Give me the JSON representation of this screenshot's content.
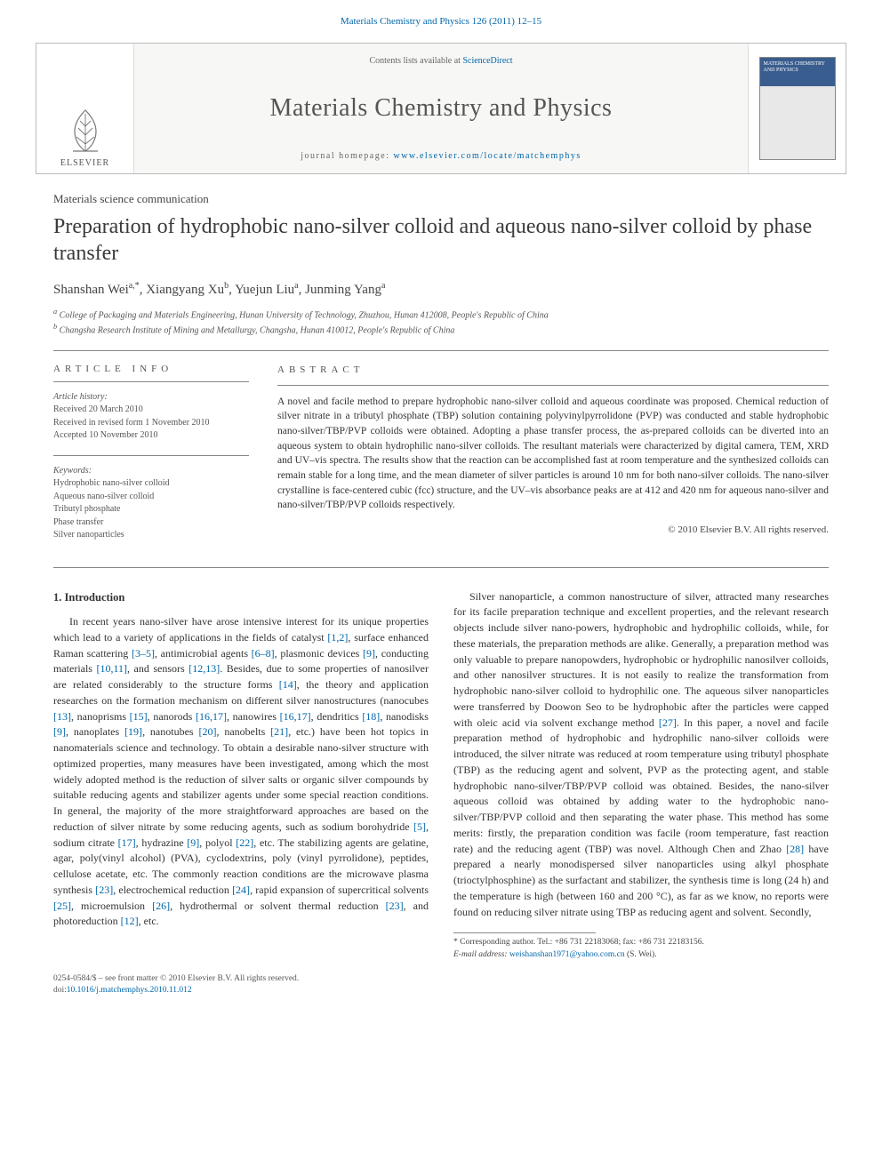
{
  "header": {
    "citation": "Materials Chemistry and Physics 126 (2011) 12–15"
  },
  "journal_box": {
    "contents_prefix": "Contents lists available at ",
    "contents_link": "ScienceDirect",
    "journal_name": "Materials Chemistry and Physics",
    "homepage_prefix": "journal homepage: ",
    "homepage_link": "www.elsevier.com/locate/matchemphys",
    "publisher": "ELSEVIER",
    "cover_title": "MATERIALS CHEMISTRY AND PHYSICS"
  },
  "article": {
    "type": "Materials science communication",
    "title": "Preparation of hydrophobic nano-silver colloid and aqueous nano-silver colloid by phase transfer",
    "authors_html": "Shanshan Wei<sup>a,*</sup>, Xiangyang Xu<sup>b</sup>, Yuejun Liu<sup>a</sup>, Junming Yang<sup>a</sup>",
    "affiliations": [
      "a College of Packaging and Materials Engineering, Hunan University of Technology, Zhuzhou, Hunan 412008, People's Republic of China",
      "b Changsha Research Institute of Mining and Metallurgy, Changsha, Hunan 410012, People's Republic of China"
    ]
  },
  "info": {
    "heading": "article info",
    "history_title": "Article history:",
    "history": [
      "Received 20 March 2010",
      "Received in revised form 1 November 2010",
      "Accepted 10 November 2010"
    ],
    "keywords_title": "Keywords:",
    "keywords": [
      "Hydrophobic nano-silver colloid",
      "Aqueous nano-silver colloid",
      "Tributyl phosphate",
      "Phase transfer",
      "Silver nanoparticles"
    ]
  },
  "abstract": {
    "heading": "abstract",
    "text": "A novel and facile method to prepare hydrophobic nano-silver colloid and aqueous coordinate was proposed. Chemical reduction of silver nitrate in a tributyl phosphate (TBP) solution containing polyvinylpyrrolidone (PVP) was conducted and stable hydrophobic nano-silver/TBP/PVP colloids were obtained. Adopting a phase transfer process, the as-prepared colloids can be diverted into an aqueous system to obtain hydrophilic nano-silver colloids. The resultant materials were characterized by digital camera, TEM, XRD and UV–vis spectra. The results show that the reaction can be accomplished fast at room temperature and the synthesized colloids can remain stable for a long time, and the mean diameter of silver particles is around 10 nm for both nano-silver colloids. The nano-silver crystalline is face-centered cubic (fcc) structure, and the UV–vis absorbance peaks are at 412 and 420 nm for aqueous nano-silver and nano-silver/TBP/PVP colloids respectively.",
    "copyright": "© 2010 Elsevier B.V. All rights reserved."
  },
  "body": {
    "section_title": "1. Introduction",
    "p1_a": "In recent years nano-silver have arose intensive interest for its unique properties which lead to a variety of applications in the fields of catalyst ",
    "p1_b": ", surface enhanced Raman scattering ",
    "p1_c": ", antimicrobial agents ",
    "p1_d": ", plasmonic devices ",
    "p1_e": ", conducting materials ",
    "p1_f": ", and sensors ",
    "p1_g": ". Besides, due to some properties of nanosilver are related considerably to the structure forms ",
    "p1_h": ", the theory and application researches on the formation mechanism on different silver nanostructures (nanocubes ",
    "p1_i": ", nanoprisms ",
    "p1_j": ", nanorods ",
    "p1_k": ", nanowires ",
    "p1_l": ", dendritics ",
    "p1_m": ", nanodisks ",
    "p1_n": ", nanoplates ",
    "p1_o": ", nanotubes ",
    "p1_p": ", nanobelts ",
    "p1_q": ", etc.) have been hot topics in nanomaterials science and technology. To obtain a desirable nano-silver structure with optimized properties, many measures have been investigated, among which the most widely adopted method is the reduction of silver salts or organic silver compounds by suitable reducing agents and stabilizer agents under some special reaction conditions. In general, the majority of the more straightforward approaches are based on the reduction of silver nitrate by some reducing agents, such as sodium borohydride ",
    "p1_r": ", sodium citrate ",
    "p1_s": ", hydrazine ",
    "p1_t": ", polyol ",
    "p1_u": ", etc. The stabilizing agents are gelatine, agar, poly(vinyl alcohol) (PVA), cyclodextrins, poly (vinyl pyrrolidone), peptides, cellulose acetate, etc. The commonly reaction conditions are the microwave plasma synthesis ",
    "p1_v": ", electrochemical reduction ",
    "p1_w": ", rapid expansion of supercritical solvents ",
    "p1_x": ", microemulsion ",
    "p1_y": ", hydrothermal or solvent thermal reduction ",
    "p1_z": ", and photoreduction ",
    "p1_end": ", etc.",
    "refs": {
      "r1": "[1,2]",
      "r2": "[3–5]",
      "r3": "[6–8]",
      "r4": "[9]",
      "r5": "[10,11]",
      "r6": "[12,13]",
      "r7": "[14]",
      "r8": "[13]",
      "r9": "[15]",
      "r10": "[16,17]",
      "r11": "[16,17]",
      "r12": "[18]",
      "r13": "[9]",
      "r14": "[19]",
      "r15": "[20]",
      "r16": "[21]",
      "r17": "[5]",
      "r18": "[17]",
      "r19": "[9]",
      "r20": "[22]",
      "r21": "[23]",
      "r22": "[24]",
      "r23": "[25]",
      "r24": "[26]",
      "r25": "[23]",
      "r26": "[12]",
      "r27": "[27]",
      "r28": "[28]"
    },
    "p2_a": "Silver nanoparticle, a common nanostructure of silver, attracted many researches for its facile preparation technique and excellent properties, and the relevant research objects include silver nano-powers, hydrophobic and hydrophilic colloids, while, for these materials, the preparation methods are alike. Generally, a preparation method was only valuable to prepare nanopowders, hydrophobic or hydrophilic nanosilver colloids, and other nanosilver structures. It is not easily to realize the transformation from hydrophobic nano-silver colloid to hydrophilic one. The aqueous silver nanoparticles were transferred by Doowon Seo to be hydrophobic after the particles were capped with oleic acid via solvent exchange method ",
    "p2_b": ". In this paper, a novel and facile preparation method of hydrophobic and hydrophilic nano-silver colloids were introduced, the silver nitrate was reduced at room temperature using tributyl phosphate (TBP) as the reducing agent and solvent, PVP as the protecting agent, and stable hydrophobic nano-silver/TBP/PVP colloid was obtained. Besides, the nano-silver aqueous colloid was obtained by adding water to the hydrophobic nano-silver/TBP/PVP colloid and then separating the water phase. This method has some merits: firstly, the preparation condition was facile (room temperature, fast reaction rate) and the reducing agent (TBP) was novel. Although Chen and Zhao ",
    "p2_c": " have prepared a nearly monodispersed silver nanoparticles using alkyl phosphate (trioctylphosphine) as the surfactant and stabilizer, the synthesis time is long (24 h) and the temperature is high (between 160 and 200 °C), as far as we know, no reports were found on reducing silver nitrate using TBP as reducing agent and solvent. Secondly,"
  },
  "footnote": {
    "corr": "* Corresponding author. Tel.: +86 731 22183068; fax: +86 731 22183156.",
    "email_label": "E-mail address: ",
    "email": "weishanshan1971@yahoo.com.cn",
    "email_who": " (S. Wei)."
  },
  "footer": {
    "line1": "0254-0584/$ – see front matter © 2010 Elsevier B.V. All rights reserved.",
    "doi_label": "doi:",
    "doi": "10.1016/j.matchemphys.2010.11.012"
  },
  "colors": {
    "link": "#0066aa",
    "text": "#333333",
    "muted": "#606060",
    "cover_blue": "#3a5d8f"
  }
}
